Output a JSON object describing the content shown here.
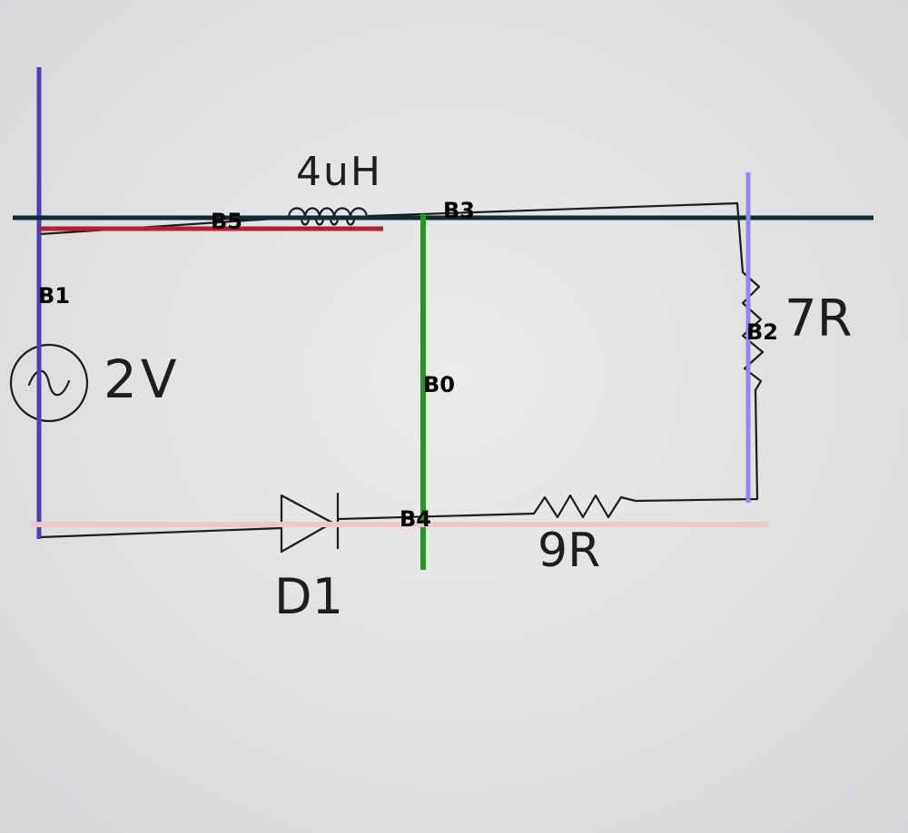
{
  "components": {
    "source": {
      "label": "2V",
      "icon": "ac-source-icon"
    },
    "inductor": {
      "label": "4uH",
      "icon": "inductor-icon"
    },
    "resistor_right": {
      "label": "7R",
      "icon": "resistor-icon"
    },
    "resistor_bottom": {
      "label": "9R",
      "icon": "resistor-icon"
    },
    "diode": {
      "label": "D1",
      "icon": "diode-icon"
    }
  },
  "branches": {
    "b0": {
      "label": "B0",
      "color": "#1f9a1f"
    },
    "b1": {
      "label": "B1",
      "color": "#4a3fb5"
    },
    "b2": {
      "label": "B2",
      "color": "#9385ea"
    },
    "b3": {
      "label": "B3",
      "color": "#0f2a33"
    },
    "b4": {
      "label": "B4",
      "color": "#ecc9c7"
    },
    "b5": {
      "label": "B5",
      "color": "#b3202c"
    }
  },
  "colors": {
    "paper": "#e3e3e5",
    "ink": "#1c1c1c"
  }
}
